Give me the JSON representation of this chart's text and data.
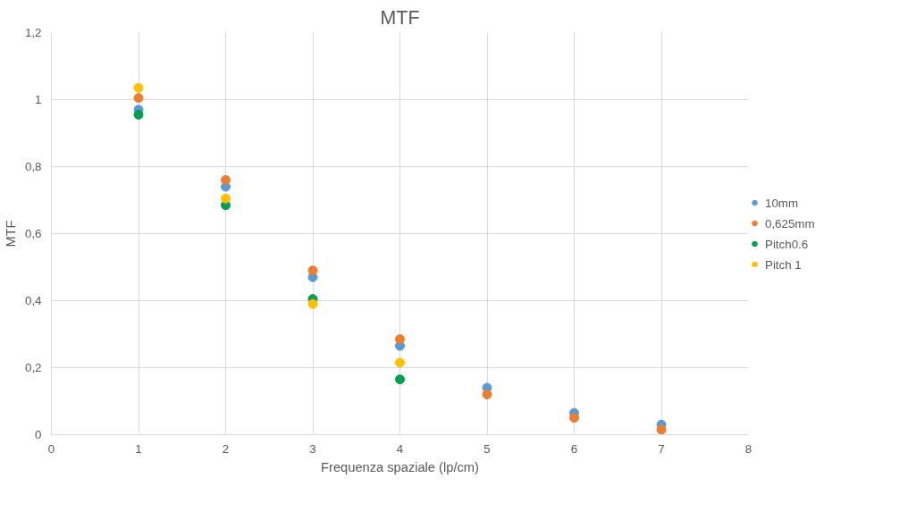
{
  "chart_data": {
    "type": "scatter",
    "title": "MTF",
    "xlabel": "Frequenza spaziale (lp/cm)",
    "ylabel": "MTF",
    "xlim": [
      0,
      8
    ],
    "xticks": [
      0,
      1,
      2,
      3,
      4,
      5,
      6,
      7,
      8
    ],
    "ylim": [
      0,
      1.2
    ],
    "yticks": [
      0,
      {
        "value": 0.2,
        "label": "0,2"
      },
      {
        "value": 0.4,
        "label": "0,4"
      },
      {
        "value": 0.6,
        "label": "0,6"
      },
      {
        "value": 0.8,
        "label": "0,8"
      },
      1,
      {
        "value": 1.2,
        "label": "1,2"
      }
    ],
    "grid": true,
    "legend": "right",
    "marker": "circle",
    "series": [
      {
        "name": "10mm",
        "color": "#5b9bd5",
        "x": [
          1,
          2,
          3,
          4,
          5,
          6,
          7
        ],
        "values": [
          0.97,
          0.74,
          0.47,
          0.265,
          0.14,
          0.065,
          0.03
        ]
      },
      {
        "name": "0,625mm",
        "color": "#ed7d31",
        "x": [
          1,
          2,
          3,
          4,
          5,
          6,
          7
        ],
        "values": [
          1.005,
          0.76,
          0.49,
          0.285,
          0.12,
          0.05,
          0.015
        ]
      },
      {
        "name": "Pitch0.6",
        "color": "#00a050",
        "x": [
          1,
          2,
          3,
          4
        ],
        "values": [
          0.955,
          0.685,
          0.405,
          0.165
        ]
      },
      {
        "name": "Pitch 1",
        "color": "#ffc000",
        "x": [
          1,
          2,
          3,
          4
        ],
        "values": [
          1.035,
          0.705,
          0.39,
          0.215
        ]
      }
    ]
  }
}
